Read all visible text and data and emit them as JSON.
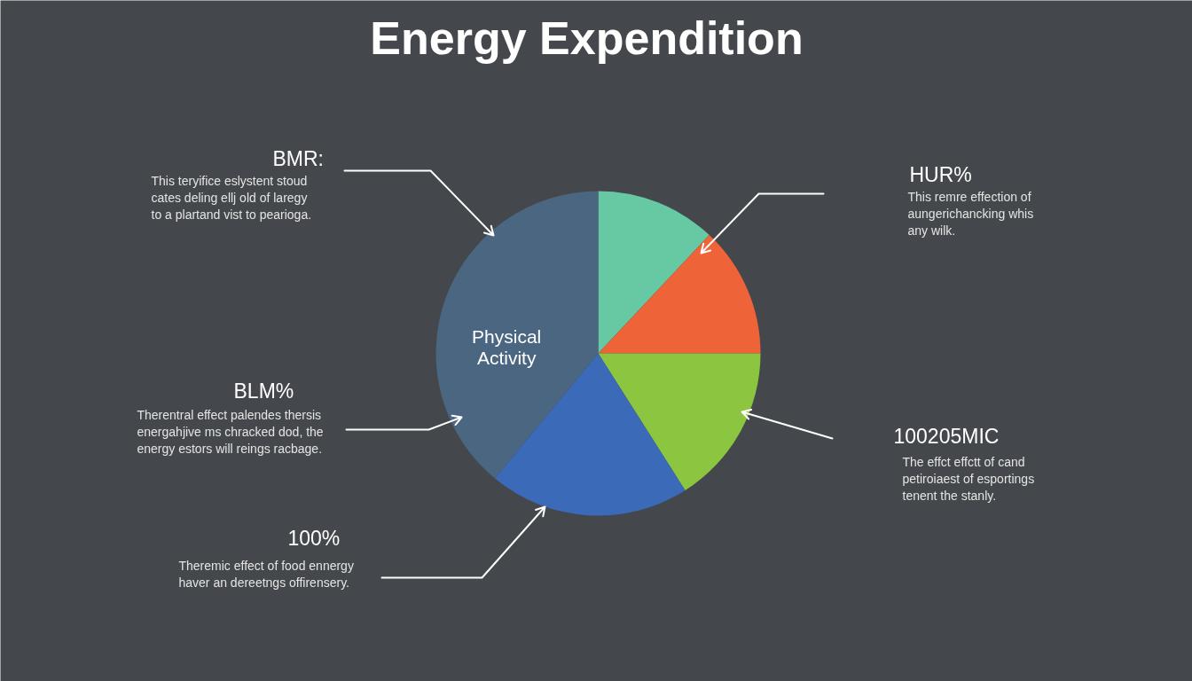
{
  "chart_data": {
    "type": "pie",
    "title": "Energy Expendition",
    "categories": [
      null,
      null,
      null,
      null,
      "Physical Activity"
    ],
    "values": [
      12,
      13,
      16,
      20,
      39
    ],
    "colors": [
      "#66c9a4",
      "#ee6338",
      "#8cc540",
      "#3a6ab8",
      "#4a6680"
    ],
    "annotations": [
      "BMR:",
      "This teryifice eslystent stoud\ncates deling ellj old of laregy\nto a plartand vist to pearioga.",
      "HUR%",
      "This remre effection of\naungerichancking whis\nany wilk.",
      "BLM%",
      "Therentral effect palendes thersis\nenergahjive ms chracked dod, the\nenergy estors will reings racbage.",
      "100205MIC",
      "The effct effctt of cand\npetiroiaest of esportings\ntenent the stanly.",
      "100%",
      "Theremic effect of food ennergy\nhaver an dereetngs offirensery."
    ]
  }
}
